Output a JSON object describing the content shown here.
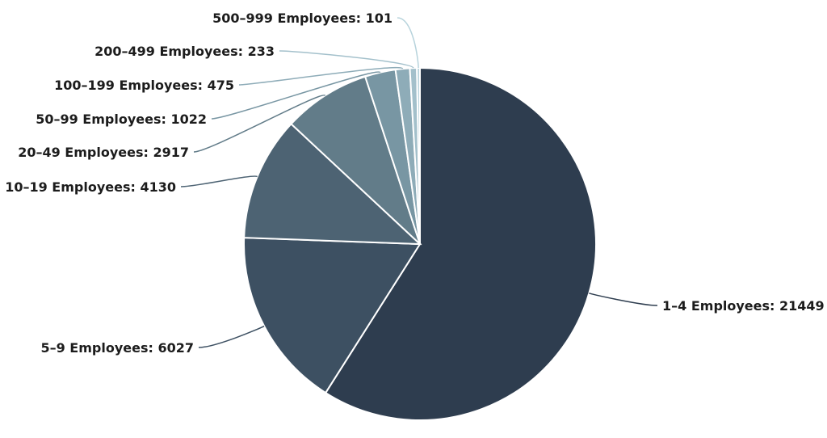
{
  "chart_data": {
    "type": "pie",
    "title": "",
    "start_angle_deg": 0,
    "direction": "clockwise",
    "slices": [
      {
        "label": "1-4 Employees",
        "value": 21449,
        "color": "#2e3d4f",
        "text": "1–4 Employees: 21449"
      },
      {
        "label": "5-9 Employees",
        "value": 6027,
        "color": "#3d5062",
        "text": "5–9 Employees: 6027"
      },
      {
        "label": "10-19 Employees",
        "value": 4130,
        "color": "#4d6373",
        "text": "10–19 Employees: 4130"
      },
      {
        "label": "20-49 Employees",
        "value": 2917,
        "color": "#627c89",
        "text": "20–49 Employees: 2917"
      },
      {
        "label": "50-99 Employees",
        "value": 1022,
        "color": "#7896a3",
        "text": "50–99 Employees: 1022"
      },
      {
        "label": "100-199 Employees",
        "value": 475,
        "color": "#8eacb8",
        "text": "100–199 Employees: 475"
      },
      {
        "label": "200-499 Employees",
        "value": 233,
        "color": "#a3c0cb",
        "text": "200–499 Employees: 233"
      },
      {
        "label": "500-999 Employees",
        "value": 101,
        "color": "#b7d3dc",
        "text": "500–999 Employees: 101"
      }
    ]
  }
}
